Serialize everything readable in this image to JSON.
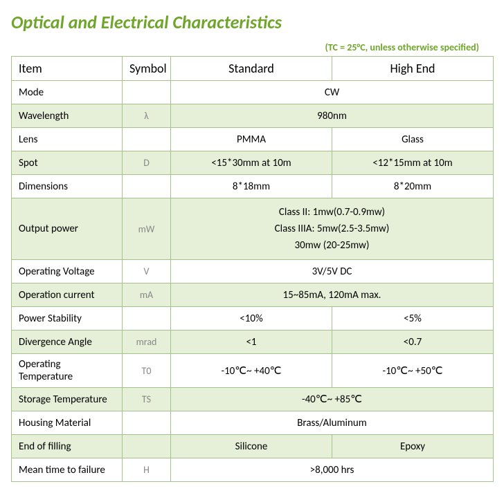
{
  "title": "Optical and Electrical Characteristics",
  "subtitle": "(TC = 25°C, unless otherwise specified)",
  "colors": {
    "accent": "#6fa52a",
    "border": "#a6c28b",
    "band": "#e6efd8",
    "symbol": "#888888",
    "bg": "#ffffff"
  },
  "headers": {
    "item": "Item",
    "symbol": "Symbol",
    "standard": "Standard",
    "highend": "High End"
  },
  "rows": [
    {
      "band": false,
      "item": "Mode",
      "symbol": "",
      "merged": "CW"
    },
    {
      "band": true,
      "item": "Wavelength",
      "symbol": "λ",
      "merged": "980nm"
    },
    {
      "band": false,
      "item": "Lens",
      "symbol": "",
      "standard": "PMMA",
      "highend": "Glass"
    },
    {
      "band": true,
      "item": "Spot",
      "symbol": "D",
      "standard": "<15*30mm at 10m",
      "highend": "<12*15mm at 10m"
    },
    {
      "band": false,
      "item": "Dimensions",
      "symbol": "",
      "standard": "8*18mm",
      "highend": "8*20mm"
    },
    {
      "band": true,
      "item": "Output power",
      "symbol": "mW",
      "merged_lines": [
        "Class II: 1mw(0.7-0.9mw)",
        "Class IIIA: 5mw(2.5-3.5mw)",
        "30mw (20-25mw)"
      ]
    },
    {
      "band": false,
      "item": "Operating Voltage",
      "symbol": "V",
      "merged": "3V/5V DC"
    },
    {
      "band": true,
      "item": "Operation current",
      "symbol": "mA",
      "merged": "15~85mA, 120mA max."
    },
    {
      "band": false,
      "item": "Power Stability",
      "symbol": "",
      "standard": "<10%",
      "highend": "<5%"
    },
    {
      "band": true,
      "item": "Divergence Angle",
      "symbol": "mrad",
      "standard": "<1",
      "highend": "<0.7"
    },
    {
      "band": false,
      "item": "Operating Temperature",
      "symbol": "T0",
      "standard": "-10℃~ +40℃",
      "highend": "-10℃~ +50℃"
    },
    {
      "band": true,
      "item": "Storage Temperature",
      "symbol": "TS",
      "merged": "-40℃~ +85℃"
    },
    {
      "band": false,
      "item": "Housing Material",
      "symbol": "",
      "merged": "Brass/Aluminum"
    },
    {
      "band": true,
      "item": "End of filling",
      "symbol": "",
      "standard": "Silicone",
      "highend": "Epoxy"
    },
    {
      "band": false,
      "item": "Mean time to failure",
      "symbol": "H",
      "merged": ">8,000 hrs"
    }
  ]
}
